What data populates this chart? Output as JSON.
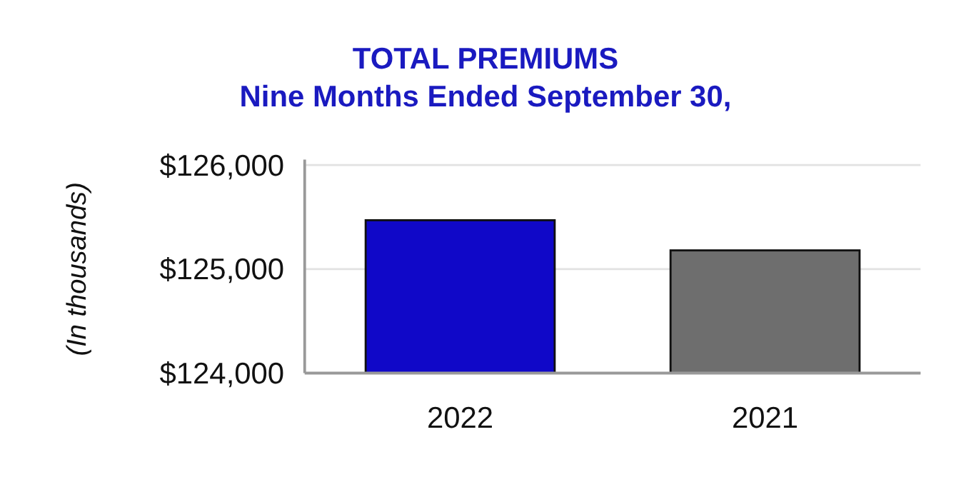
{
  "chart_data": {
    "type": "bar",
    "title": "TOTAL PREMIUMS",
    "subtitle": "Nine Months Ended September 30,",
    "ylabel": "(In thousands)",
    "categories": [
      "2022",
      "2021"
    ],
    "values": [
      125470,
      125180
    ],
    "colors": [
      "#1008c8",
      "#6e6e6e"
    ],
    "ylim": [
      124000,
      126000
    ],
    "yticks": [
      {
        "value": 124000,
        "label": "$124,000"
      },
      {
        "value": 125000,
        "label": "$125,000"
      },
      {
        "value": 126000,
        "label": "$126,000"
      }
    ],
    "grid": "y"
  }
}
